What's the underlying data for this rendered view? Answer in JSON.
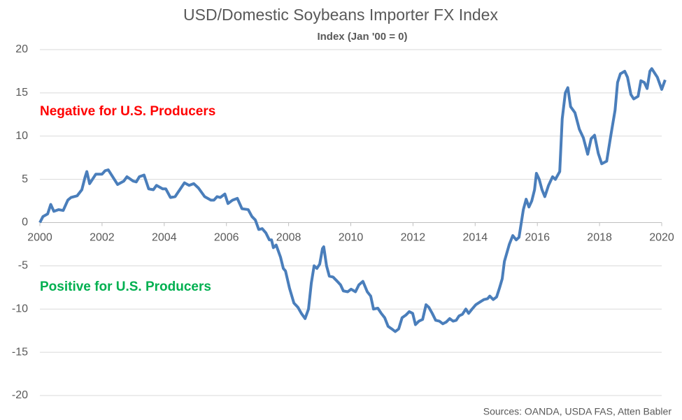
{
  "chart_data": {
    "type": "line",
    "title": "USD/Domestic Soybeans Importer FX Index",
    "subtitle": "Index (Jan '00 = 0)",
    "annotations": [
      {
        "text": "Negative for U.S. Producers",
        "color": "#ff0000"
      },
      {
        "text": "Positive for U.S. Producers",
        "color": "#00b050"
      }
    ],
    "source": "Sources: OANDA, USDA FAS, Atten Babler",
    "color": "#4a7ebb",
    "grid": true,
    "xlim": [
      2000,
      2020
    ],
    "xticks": [
      2000,
      2002,
      2004,
      2006,
      2008,
      2010,
      2012,
      2014,
      2016,
      2018,
      2020
    ],
    "ylim": [
      -20,
      20
    ],
    "yticks": [
      20,
      15,
      10,
      5,
      0,
      -5,
      -10,
      -15,
      -20
    ],
    "x": [
      2000.0,
      2000.1,
      2000.25,
      2000.35,
      2000.45,
      2000.6,
      2000.75,
      2000.9,
      2001.0,
      2001.2,
      2001.35,
      2001.45,
      2001.51,
      2001.6,
      2001.8,
      2002.0,
      2002.1,
      2002.2,
      2002.5,
      2002.7,
      2002.8,
      2003.0,
      2003.1,
      2003.2,
      2003.35,
      2003.5,
      2003.65,
      2003.75,
      2003.95,
      2004.05,
      2004.2,
      2004.35,
      2004.5,
      2004.65,
      2004.8,
      2004.95,
      2005.1,
      2005.3,
      2005.5,
      2005.6,
      2005.7,
      2005.8,
      2005.95,
      2006.05,
      2006.2,
      2006.35,
      2006.5,
      2006.7,
      2006.82,
      2006.93,
      2007.04,
      2007.15,
      2007.27,
      2007.38,
      2007.45,
      2007.51,
      2007.6,
      2007.74,
      2007.83,
      2007.9,
      2008.03,
      2008.17,
      2008.3,
      2008.41,
      2008.53,
      2008.64,
      2008.73,
      2008.82,
      2008.91,
      2009.0,
      2009.09,
      2009.13,
      2009.22,
      2009.31,
      2009.43,
      2009.54,
      2009.67,
      2009.76,
      2009.9,
      2010.01,
      2010.15,
      2010.26,
      2010.39,
      2010.53,
      2010.64,
      2010.73,
      2010.87,
      2010.98,
      2011.09,
      2011.2,
      2011.32,
      2011.43,
      2011.54,
      2011.65,
      2011.77,
      2011.88,
      2011.99,
      2012.08,
      2012.19,
      2012.31,
      2012.42,
      2012.51,
      2012.62,
      2012.73,
      2012.85,
      2012.96,
      2013.07,
      2013.18,
      2013.29,
      2013.39,
      2013.48,
      2013.59,
      2013.7,
      2013.79,
      2013.9,
      2014.02,
      2014.15,
      2014.28,
      2014.4,
      2014.47,
      2014.58,
      2014.69,
      2014.78,
      2014.87,
      2014.94,
      2015.1,
      2015.21,
      2015.32,
      2015.41,
      2015.55,
      2015.64,
      2015.73,
      2015.82,
      2015.91,
      2015.97,
      2016.06,
      2016.15,
      2016.24,
      2016.36,
      2016.49,
      2016.58,
      2016.72,
      2016.8,
      2016.9,
      2016.98,
      2017.07,
      2017.21,
      2017.35,
      2017.48,
      2017.62,
      2017.73,
      2017.84,
      2017.96,
      2018.07,
      2018.23,
      2018.36,
      2018.5,
      2018.58,
      2018.67,
      2018.81,
      2018.9,
      2019.01,
      2019.1,
      2019.24,
      2019.33,
      2019.44,
      2019.53,
      2019.62,
      2019.68,
      2019.86,
      2020.0,
      2020.11
    ],
    "values": [
      0,
      0.7,
      1.0,
      2.1,
      1.3,
      1.5,
      1.4,
      2.6,
      2.9,
      3.1,
      3.8,
      5.2,
      5.9,
      4.5,
      5.6,
      5.6,
      6.0,
      6.1,
      4.4,
      4.8,
      5.3,
      4.8,
      4.7,
      5.3,
      5.5,
      3.9,
      3.8,
      4.3,
      3.9,
      3.9,
      2.9,
      3.0,
      3.8,
      4.6,
      4.3,
      4.5,
      4.0,
      3.0,
      2.6,
      2.6,
      3.0,
      2.9,
      3.3,
      2.2,
      2.6,
      2.8,
      1.6,
      1.5,
      0.7,
      0.3,
      -0.8,
      -0.7,
      -1.2,
      -2.0,
      -2.0,
      -2.9,
      -2.6,
      -4.0,
      -5.3,
      -5.6,
      -7.6,
      -9.3,
      -9.8,
      -10.5,
      -11.1,
      -10.0,
      -7.0,
      -5.0,
      -5.3,
      -4.8,
      -3.0,
      -2.8,
      -5.0,
      -6.2,
      -6.3,
      -6.7,
      -7.2,
      -7.9,
      -8.0,
      -7.7,
      -8.0,
      -7.2,
      -6.8,
      -8.0,
      -8.5,
      -10.0,
      -9.9,
      -10.5,
      -11.0,
      -12.0,
      -12.3,
      -12.6,
      -12.3,
      -11.0,
      -10.7,
      -10.3,
      -10.5,
      -11.8,
      -11.4,
      -11.2,
      -9.5,
      -9.8,
      -10.5,
      -11.3,
      -11.4,
      -11.7,
      -11.5,
      -11.1,
      -11.4,
      -11.3,
      -10.8,
      -10.6,
      -10.0,
      -10.5,
      -10.0,
      -9.5,
      -9.2,
      -8.9,
      -8.8,
      -8.5,
      -8.9,
      -8.6,
      -7.6,
      -6.5,
      -4.5,
      -2.5,
      -1.5,
      -2.0,
      -1.7,
      1.5,
      2.7,
      1.8,
      2.5,
      3.8,
      5.7,
      5.0,
      3.8,
      3.0,
      4.3,
      5.3,
      5.0,
      5.9,
      12.0,
      15.0,
      15.6,
      13.4,
      12.7,
      10.8,
      9.8,
      7.9,
      9.7,
      10.1,
      8.0,
      6.8,
      7.1,
      10.0,
      13.0,
      16.2,
      17.2,
      17.5,
      16.8,
      14.8,
      14.3,
      14.6,
      16.4,
      16.2,
      15.5,
      17.5,
      17.8,
      16.8,
      15.4,
      16.5
    ]
  }
}
